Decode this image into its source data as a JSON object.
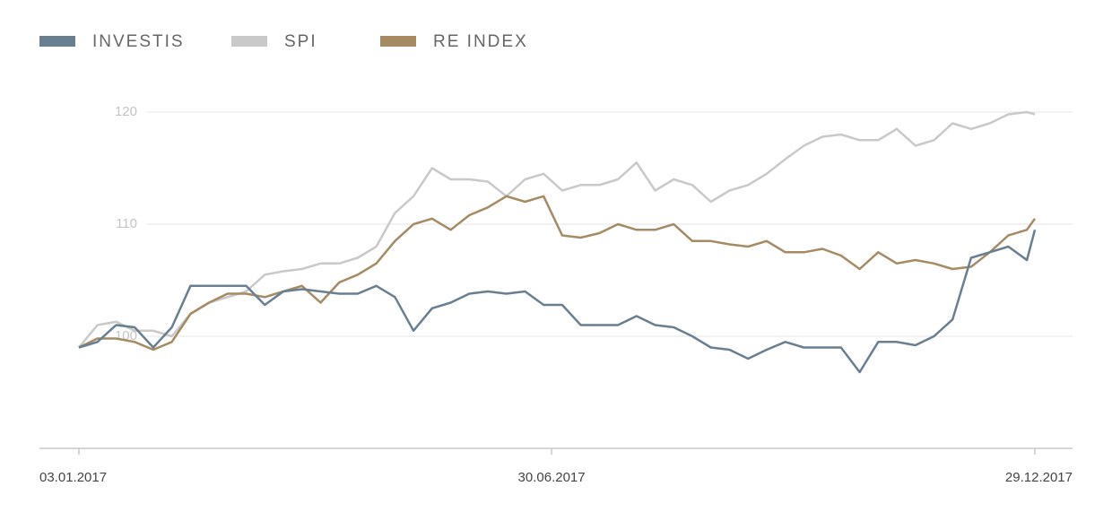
{
  "chart_data": {
    "type": "line",
    "legend": "top-left",
    "grid": true,
    "x": [
      "2017-01-03",
      "2017-01-10",
      "2017-01-17",
      "2017-01-24",
      "2017-01-31",
      "2017-02-07",
      "2017-02-14",
      "2017-02-21",
      "2017-02-28",
      "2017-03-07",
      "2017-03-14",
      "2017-03-21",
      "2017-03-28",
      "2017-04-04",
      "2017-04-11",
      "2017-04-18",
      "2017-04-25",
      "2017-05-02",
      "2017-05-09",
      "2017-05-16",
      "2017-05-23",
      "2017-05-30",
      "2017-06-06",
      "2017-06-13",
      "2017-06-20",
      "2017-06-27",
      "2017-07-04",
      "2017-07-11",
      "2017-07-18",
      "2017-07-25",
      "2017-08-01",
      "2017-08-08",
      "2017-08-15",
      "2017-08-22",
      "2017-08-29",
      "2017-09-05",
      "2017-09-12",
      "2017-09-19",
      "2017-09-26",
      "2017-10-03",
      "2017-10-10",
      "2017-10-17",
      "2017-10-24",
      "2017-10-31",
      "2017-11-07",
      "2017-11-14",
      "2017-11-21",
      "2017-11-28",
      "2017-12-05",
      "2017-12-12",
      "2017-12-19",
      "2017-12-26",
      "2017-12-29"
    ],
    "series": [
      {
        "name": "INVESTIS",
        "color": "#687f91",
        "values": [
          99.0,
          99.5,
          101.0,
          100.8,
          99.0,
          100.8,
          104.5,
          104.5,
          104.5,
          104.5,
          102.8,
          104.0,
          104.2,
          104.0,
          103.8,
          103.8,
          104.5,
          103.5,
          100.5,
          102.5,
          103.0,
          103.8,
          104.0,
          103.8,
          104.0,
          102.8,
          102.8,
          101.0,
          101.0,
          101.0,
          101.8,
          101.0,
          100.8,
          100.0,
          99.0,
          98.8,
          98.0,
          98.8,
          99.5,
          99.0,
          99.0,
          99.0,
          96.8,
          99.5,
          99.5,
          99.2,
          100.0,
          101.5,
          107.0,
          107.5,
          108.0,
          106.8,
          109.5
        ]
      },
      {
        "name": "SPI",
        "color": "#c9c9c9",
        "values": [
          99.0,
          101.0,
          101.3,
          100.5,
          100.5,
          100.0,
          102.0,
          103.0,
          103.5,
          104.0,
          105.5,
          105.8,
          106.0,
          106.5,
          106.5,
          107.0,
          108.0,
          111.0,
          112.5,
          115.0,
          114.0,
          114.0,
          113.8,
          112.5,
          114.0,
          114.5,
          113.0,
          113.5,
          113.5,
          114.0,
          115.5,
          113.0,
          114.0,
          113.5,
          112.0,
          113.0,
          113.5,
          114.5,
          115.8,
          117.0,
          117.8,
          118.0,
          117.5,
          117.5,
          118.5,
          117.0,
          117.5,
          119.0,
          118.5,
          119.0,
          119.8,
          120.0,
          119.8
        ]
      },
      {
        "name": "RE INDEX",
        "color": "#a58a63",
        "values": [
          99.0,
          99.8,
          99.8,
          99.5,
          98.8,
          99.5,
          102.0,
          103.0,
          103.8,
          103.8,
          103.5,
          104.0,
          104.5,
          103.0,
          104.8,
          105.5,
          106.5,
          108.5,
          110.0,
          110.5,
          109.5,
          110.8,
          111.5,
          112.5,
          112.0,
          112.5,
          109.0,
          108.8,
          109.2,
          110.0,
          109.5,
          109.5,
          110.0,
          108.5,
          108.5,
          108.2,
          108.0,
          108.5,
          107.5,
          107.5,
          107.8,
          107.2,
          106.0,
          107.5,
          106.5,
          106.8,
          106.5,
          106.0,
          106.2,
          107.5,
          109.0,
          109.5,
          110.5
        ]
      }
    ],
    "xlim": [
      "2017-01-03",
      "2017-12-29"
    ],
    "xticks": [
      {
        "value": "2017-01-03",
        "label": "03.01.2017"
      },
      {
        "value": "2017-06-30",
        "label": "30.06.2017"
      },
      {
        "value": "2017-12-29",
        "label": "29.12.2017"
      }
    ],
    "ylim": [
      90,
      122
    ],
    "yticks": [
      100,
      110,
      120
    ]
  }
}
